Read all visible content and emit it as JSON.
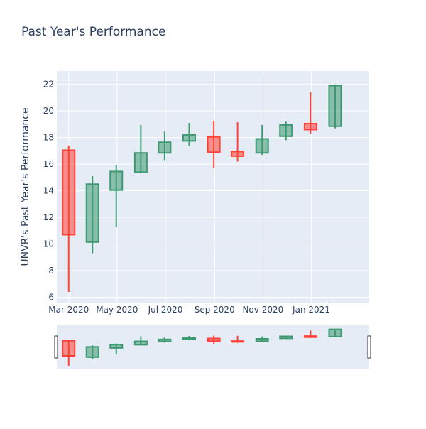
{
  "chart_data": {
    "type": "candlestick",
    "title": "Past Year's Performance",
    "ylabel": "UNVR's Past Year's Performance",
    "xlabel": "",
    "ylim": [
      5.6,
      23.0
    ],
    "yticks": [
      6,
      8,
      10,
      12,
      14,
      16,
      18,
      20,
      22
    ],
    "x_ticks": [
      {
        "label": "Mar 2020",
        "date": "2020-03-01"
      },
      {
        "label": "May 2020",
        "date": "2020-05-01"
      },
      {
        "label": "Jul 2020",
        "date": "2020-07-01"
      },
      {
        "label": "Sep 2020",
        "date": "2020-09-01"
      },
      {
        "label": "Nov 2020",
        "date": "2020-11-01"
      },
      {
        "label": "Jan 2021",
        "date": "2021-01-01"
      }
    ],
    "xrange": [
      "2020-02-15",
      "2021-03-15"
    ],
    "increasing_color": "#3D9970",
    "decreasing_color": "#FF4136",
    "plot_bg": "#E5ECF6",
    "candles": [
      {
        "date": "2020-03-01",
        "open": 17.05,
        "high": 17.4,
        "low": 6.4,
        "close": 10.7
      },
      {
        "date": "2020-03-31",
        "open": 10.15,
        "high": 15.1,
        "low": 9.3,
        "close": 14.5
      },
      {
        "date": "2020-04-30",
        "open": 14.05,
        "high": 15.9,
        "low": 11.25,
        "close": 15.45
      },
      {
        "date": "2020-05-31",
        "open": 15.4,
        "high": 18.95,
        "low": 15.35,
        "close": 16.85
      },
      {
        "date": "2020-06-30",
        "open": 16.85,
        "high": 18.45,
        "low": 16.3,
        "close": 17.65
      },
      {
        "date": "2020-07-31",
        "open": 17.75,
        "high": 19.1,
        "low": 17.35,
        "close": 18.2
      },
      {
        "date": "2020-08-31",
        "open": 18.05,
        "high": 19.25,
        "low": 15.7,
        "close": 16.9
      },
      {
        "date": "2020-09-30",
        "open": 16.95,
        "high": 19.15,
        "low": 16.2,
        "close": 16.6
      },
      {
        "date": "2020-10-31",
        "open": 16.85,
        "high": 18.95,
        "low": 16.7,
        "close": 17.9
      },
      {
        "date": "2020-11-30",
        "open": 18.1,
        "high": 19.2,
        "low": 17.8,
        "close": 18.95
      },
      {
        "date": "2020-12-31",
        "open": 19.05,
        "high": 21.4,
        "low": 18.3,
        "close": 18.6
      },
      {
        "date": "2021-01-31",
        "open": 18.85,
        "high": 22.0,
        "low": 18.7,
        "close": 21.9
      }
    ]
  }
}
